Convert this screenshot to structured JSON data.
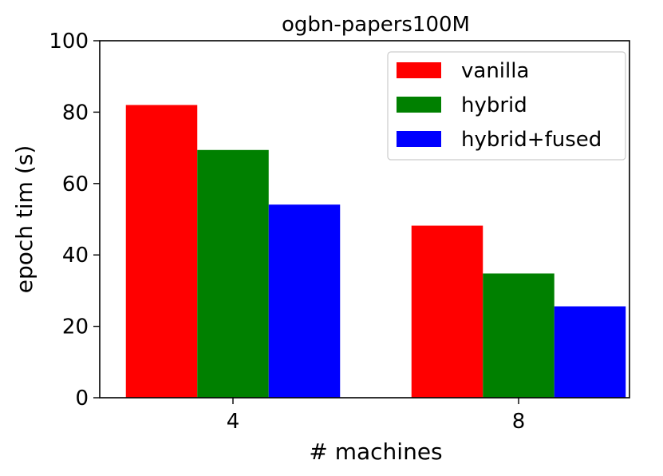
{
  "chart_data": {
    "type": "bar",
    "title": "ogbn-papers100M",
    "xlabel": "# machines",
    "ylabel": "epoch tim (s)",
    "categories": [
      "4",
      "8"
    ],
    "ylim": [
      0,
      100
    ],
    "yticks": [
      0,
      20,
      40,
      60,
      80,
      100
    ],
    "grid": false,
    "legend_position": "top-right",
    "series": [
      {
        "name": "vanilla",
        "color": "#ff0000",
        "values": [
          82,
          48.2
        ]
      },
      {
        "name": "hybrid",
        "color": "#008000",
        "values": [
          69.4,
          34.8
        ]
      },
      {
        "name": "hybrid+fused",
        "color": "#0000ff",
        "values": [
          54.1,
          25.6
        ]
      }
    ]
  }
}
